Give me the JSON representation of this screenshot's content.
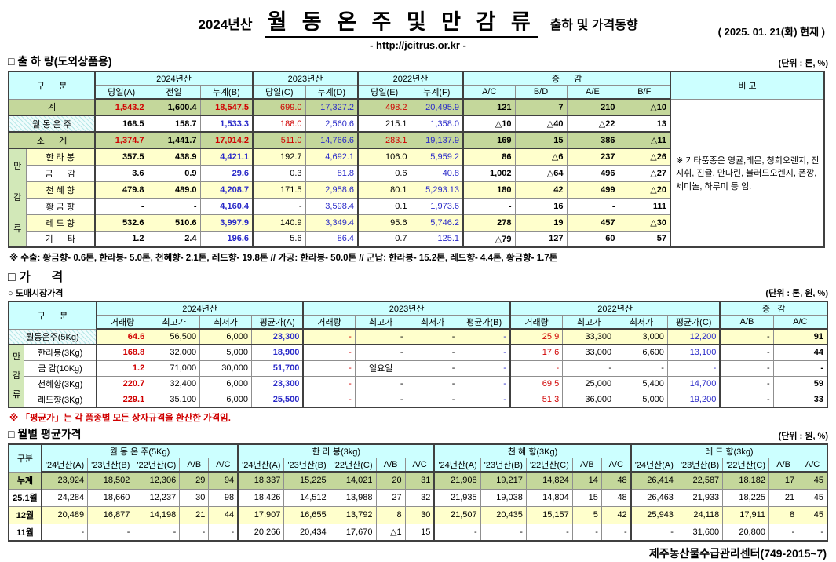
{
  "header": {
    "title_year": "2024년산",
    "title_main": "월 동 온 주 및 만 감 류",
    "title_sub": "출하 및 가격동향",
    "url": "- http://jcitrus.or.kr -",
    "date": "( 2025. 01. 21(화) 현재 )"
  },
  "shipment": {
    "section_title": "□ 출 하 량(도외상품용)",
    "unit": "(단위 : 톤, %)",
    "header": {
      "gubun": "구      분",
      "groups": [
        "2024년산",
        "2023년산",
        "2022년산",
        "증      감"
      ],
      "bigo": "비 고",
      "cols": [
        "당일(A)",
        "전일",
        "누계(B)",
        "당일(C)",
        "누계(D)",
        "당일(E)",
        "누계(F)",
        "A/C",
        "B/D",
        "A/E",
        "B/F"
      ]
    },
    "group_label": "만감류",
    "rows": [
      {
        "label": "계",
        "cells": [
          "1,543.2",
          "1,600.4",
          "18,547.5",
          "699.0",
          "17,327.2",
          "498.2",
          "20,495.9",
          "121",
          "7",
          "210",
          "△10"
        ]
      },
      {
        "label": "월 동 온 주",
        "cells": [
          "168.5",
          "158.7",
          "1,533.3",
          "188.0",
          "2,560.6",
          "215.1",
          "1,358.0",
          "△10",
          "△40",
          "△22",
          "13"
        ]
      },
      {
        "label": "소      계",
        "cells": [
          "1,374.7",
          "1,441.7",
          "17,014.2",
          "511.0",
          "14,766.6",
          "283.1",
          "19,137.9",
          "169",
          "15",
          "386",
          "△11"
        ]
      },
      {
        "label": "한 라 봉",
        "cells": [
          "357.5",
          "438.9",
          "4,421.1",
          "192.7",
          "4,692.1",
          "106.0",
          "5,959.2",
          "86",
          "△6",
          "237",
          "△26"
        ]
      },
      {
        "label": "금      감",
        "cells": [
          "3.6",
          "0.9",
          "29.6",
          "0.3",
          "81.8",
          "0.6",
          "40.8",
          "1,002",
          "△64",
          "496",
          "△27"
        ]
      },
      {
        "label": "천 혜 향",
        "cells": [
          "479.8",
          "489.0",
          "4,208.7",
          "171.5",
          "2,958.6",
          "80.1",
          "5,293.13",
          "180",
          "42",
          "499",
          "△20"
        ]
      },
      {
        "label": "황 금 향",
        "cells": [
          "-",
          "-",
          "4,160.4",
          "-",
          "3,598.4",
          "0.1",
          "1,973.6",
          "-",
          "16",
          "-",
          "111"
        ]
      },
      {
        "label": "레 드 향",
        "cells": [
          "532.6",
          "510.6",
          "3,997.9",
          "140.9",
          "3,349.4",
          "95.6",
          "5,746.2",
          "278",
          "19",
          "457",
          "△30"
        ]
      },
      {
        "label": "기      타",
        "cells": [
          "1.2",
          "2.4",
          "196.6",
          "5.6",
          "86.4",
          "0.7",
          "125.1",
          "△79",
          "127",
          "60",
          "57"
        ]
      }
    ],
    "note": "※ 기타품종은 영귤,레몬, 청희오렌지, 진지휘, 진귤, 만다린, 블러드오렌지, 폰깡,세미놀, 하루미 등 임.",
    "footnote": "※ 수출: 황금향- 0.6톤, 한라봉- 5.0톤, 천혜향- 2.1톤, 레드향- 19.8톤  //  가공: 한라봉- 50.0톤  //  군납: 한라봉- 15.2톤, 레드향- 4.4톤, 황금향- 1.7톤"
  },
  "price": {
    "section_title": "□ 가      격",
    "sub_title": "○ 도매시장가격",
    "unit": "(단위 : 톤, 원, %)",
    "header": {
      "gubun": "구      분",
      "groups": [
        "2024년산",
        "2023년산",
        "2022년산",
        "증   감"
      ],
      "cols": [
        "거래량",
        "최고가",
        "최저가",
        "평균가(A)",
        "거래량",
        "최고가",
        "최저가",
        "평균가(B)",
        "거래량",
        "최고가",
        "최저가",
        "평균가(C)",
        "A/B",
        "A/C"
      ]
    },
    "group_label": "만감류",
    "rows": [
      {
        "label": "월동온주(5Kg)",
        "cells": [
          "64.6",
          "56,500",
          "6,000",
          "23,300",
          "-",
          "-",
          "-",
          "-",
          "25.9",
          "33,300",
          "3,000",
          "12,200",
          "-",
          "91"
        ]
      },
      {
        "label": "한라봉(3Kg)",
        "cells": [
          "168.8",
          "32,000",
          "5,000",
          "18,900",
          "-",
          "-",
          "-",
          "-",
          "17.6",
          "33,000",
          "6,600",
          "13,100",
          "-",
          "44"
        ]
      },
      {
        "label": "금 감(10Kg)",
        "cells": [
          "1.2",
          "71,000",
          "30,000",
          "51,700",
          "-",
          "일요일",
          "-",
          "-",
          "-",
          "-",
          "-",
          "-",
          "-",
          "-"
        ]
      },
      {
        "label": "천혜향(3Kg)",
        "cells": [
          "220.7",
          "32,400",
          "6,000",
          "23,300",
          "-",
          "-",
          "-",
          "-",
          "69.5",
          "25,000",
          "5,400",
          "14,700",
          "-",
          "59"
        ]
      },
      {
        "label": "레드향(3Kg)",
        "cells": [
          "229.1",
          "35,100",
          "6,000",
          "25,500",
          "-",
          "-",
          "-",
          "-",
          "51.3",
          "36,000",
          "5,000",
          "19,200",
          "-",
          "33"
        ]
      }
    ],
    "footnote": "※ 「평균가」는 각 품종별 모든 상자규격을 환산한 가격임."
  },
  "monthly": {
    "section_title": "□ 월별 평균가격",
    "unit": "(단위 : 원, %)",
    "gubun": "구분",
    "groups": [
      "월 동 온 주(5Kg)",
      "한 라 봉(3kg)",
      "천 혜 향(3Kg)",
      "레 드 향(3kg)"
    ],
    "cols": [
      "'24년산(A)",
      "'23년산(B)",
      "'22년산(C)",
      "A/B",
      "A/C"
    ],
    "rows": [
      {
        "label": "누계",
        "cells": [
          "23,924",
          "18,502",
          "12,306",
          "29",
          "94",
          "18,337",
          "15,225",
          "14,021",
          "20",
          "31",
          "21,908",
          "19,217",
          "14,824",
          "14",
          "48",
          "26,414",
          "22,587",
          "18,182",
          "17",
          "45"
        ]
      },
      {
        "label": "25.1월",
        "cells": [
          "24,284",
          "18,660",
          "12,237",
          "30",
          "98",
          "18,426",
          "14,512",
          "13,988",
          "27",
          "32",
          "21,935",
          "19,038",
          "14,804",
          "15",
          "48",
          "26,463",
          "21,933",
          "18,225",
          "21",
          "45"
        ]
      },
      {
        "label": "12월",
        "cells": [
          "20,489",
          "16,877",
          "14,198",
          "21",
          "44",
          "17,907",
          "16,655",
          "13,792",
          "8",
          "30",
          "21,507",
          "20,435",
          "15,157",
          "5",
          "42",
          "25,943",
          "24,118",
          "17,911",
          "8",
          "45"
        ]
      },
      {
        "label": "11월",
        "cells": [
          "-",
          "-",
          "-",
          "-",
          "-",
          "20,266",
          "20,434",
          "17,670",
          "△1",
          "15",
          "-",
          "-",
          "-",
          "-",
          "-",
          "-",
          "31,600",
          "20,800",
          "-",
          "-"
        ]
      }
    ]
  },
  "footer": "제주농산물수급관리센터(749-2015~7)",
  "colors": {
    "header_bg": "#ccffff",
    "green_row": "#c4d79b",
    "yellow_row": "#ffffcc",
    "group_label_bg": "#d2e8b8",
    "hatched_bg": "#f0fcfc",
    "red_text": "#d00000",
    "blue_text": "#2929c8"
  }
}
